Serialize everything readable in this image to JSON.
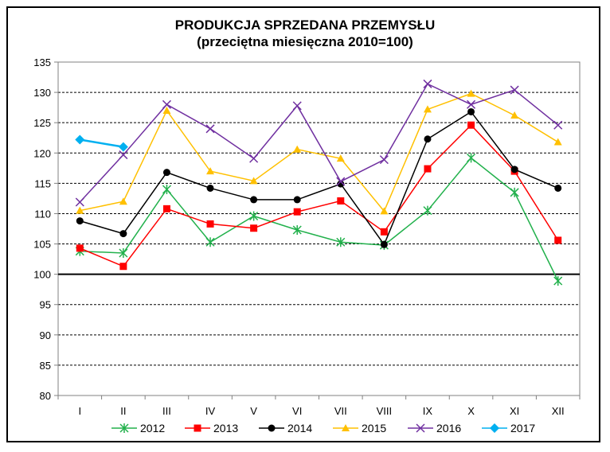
{
  "chart_data": {
    "type": "line",
    "title": "PRODUKCJA SPRZEDANA PRZEMYSŁU",
    "subtitle": "(przeciętna miesięczna 2010=100)",
    "xlabel": "",
    "ylabel": "",
    "categories": [
      "I",
      "II",
      "III",
      "IV",
      "V",
      "VI",
      "VII",
      "VIII",
      "IX",
      "X",
      "XI",
      "XII"
    ],
    "ylim": [
      80,
      135
    ],
    "yticks": [
      80,
      85,
      90,
      95,
      100,
      105,
      110,
      115,
      120,
      125,
      130,
      135
    ],
    "reference_line": 100,
    "grid": "horizontal-dashed",
    "legend_position": "bottom",
    "series": [
      {
        "name": "2012",
        "color": "#22b14c",
        "marker": "asterisk",
        "values": [
          103.8,
          103.5,
          114.0,
          105.3,
          109.6,
          107.3,
          105.3,
          104.8,
          110.5,
          119.2,
          113.5,
          98.9
        ]
      },
      {
        "name": "2013",
        "color": "#ff0000",
        "marker": "square",
        "values": [
          104.3,
          101.3,
          110.8,
          108.3,
          107.6,
          110.3,
          112.1,
          107.0,
          117.4,
          124.6,
          117.0,
          105.6
        ]
      },
      {
        "name": "2014",
        "color": "#000000",
        "marker": "circle",
        "values": [
          108.8,
          106.7,
          116.8,
          114.2,
          112.3,
          112.3,
          114.9,
          104.9,
          122.3,
          126.8,
          117.3,
          114.2
        ]
      },
      {
        "name": "2015",
        "color": "#ffc000",
        "marker": "triangle",
        "values": [
          110.5,
          112.0,
          127.0,
          117.0,
          115.4,
          120.6,
          119.1,
          110.4,
          127.2,
          129.8,
          126.2,
          121.8
        ]
      },
      {
        "name": "2016",
        "color": "#7030a0",
        "marker": "x",
        "values": [
          111.9,
          119.7,
          128.0,
          124.0,
          119.1,
          127.8,
          115.3,
          118.9,
          131.4,
          128.0,
          130.4,
          124.6
        ]
      },
      {
        "name": "2017",
        "color": "#00b0f0",
        "marker": "diamond",
        "values": [
          122.2,
          121.0,
          null,
          null,
          null,
          null,
          null,
          null,
          null,
          null,
          null,
          null
        ]
      }
    ]
  }
}
